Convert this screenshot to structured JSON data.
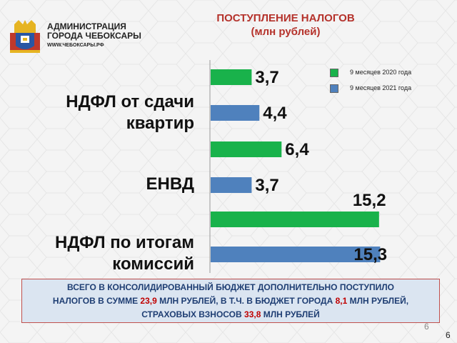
{
  "header": {
    "org_line1": "АДМИНИСТРАЦИЯ",
    "org_line2": "ГОРОДА ЧЕБОКСАРЫ",
    "org_url": "WWW.ЧЕБОКСАРЫ.РФ"
  },
  "title": {
    "line1": "ПОСТУПЛЕНИЕ НАЛОГОВ",
    "line2": "(млн рублей)"
  },
  "colors": {
    "series_2020": "#19b24b",
    "series_2021": "#4f81bd",
    "title": "#b5322b",
    "highlight": "#c00000"
  },
  "chart_data": {
    "type": "bar",
    "orientation": "horizontal",
    "title": "ПОСТУПЛЕНИЕ НАЛОГОВ (млн рублей)",
    "categories": [
      {
        "line1": "НДФЛ от сдачи",
        "line2": "квартир"
      },
      {
        "line1": "ЕНВД",
        "line2": ""
      },
      {
        "line1": "НДФЛ по итогам",
        "line2": "комиссий"
      }
    ],
    "series": [
      {
        "name": "9 месяцев 2020 года",
        "values": [
          3.7,
          6.4,
          15.2
        ],
        "labels": [
          "3,7",
          "6,4",
          "15,2"
        ]
      },
      {
        "name": "9 месяцев 2021 года",
        "values": [
          4.4,
          3.7,
          15.3
        ],
        "labels": [
          "4,4",
          "3,7",
          "15,3"
        ]
      }
    ],
    "xlim": [
      0,
      16.5
    ],
    "grid": false,
    "legend": "top-right"
  },
  "note": {
    "line1": "ВСЕГО В КОНСОЛИДИРОВАННЫЙ БЮДЖЕТ ДОПОЛНИТЕЛЬНО ПОСТУПИЛО",
    "line2_a": "НАЛОГОВ В СУММЕ ",
    "line2_v1": "23,9",
    "line2_b": " МЛН РУБЛЕЙ,  В Т.Ч. В БЮДЖЕТ ГОРОДА  ",
    "line2_v2": "8,1",
    "line2_c": " МЛН РУБЛЕЙ,",
    "line3_a": "СТРАХОВЫХ ВЗНОСОВ  ",
    "line3_v": "33,8",
    "line3_b": " МЛН РУБЛЕЙ"
  },
  "page_number": "6",
  "page_number_shadow": "6"
}
